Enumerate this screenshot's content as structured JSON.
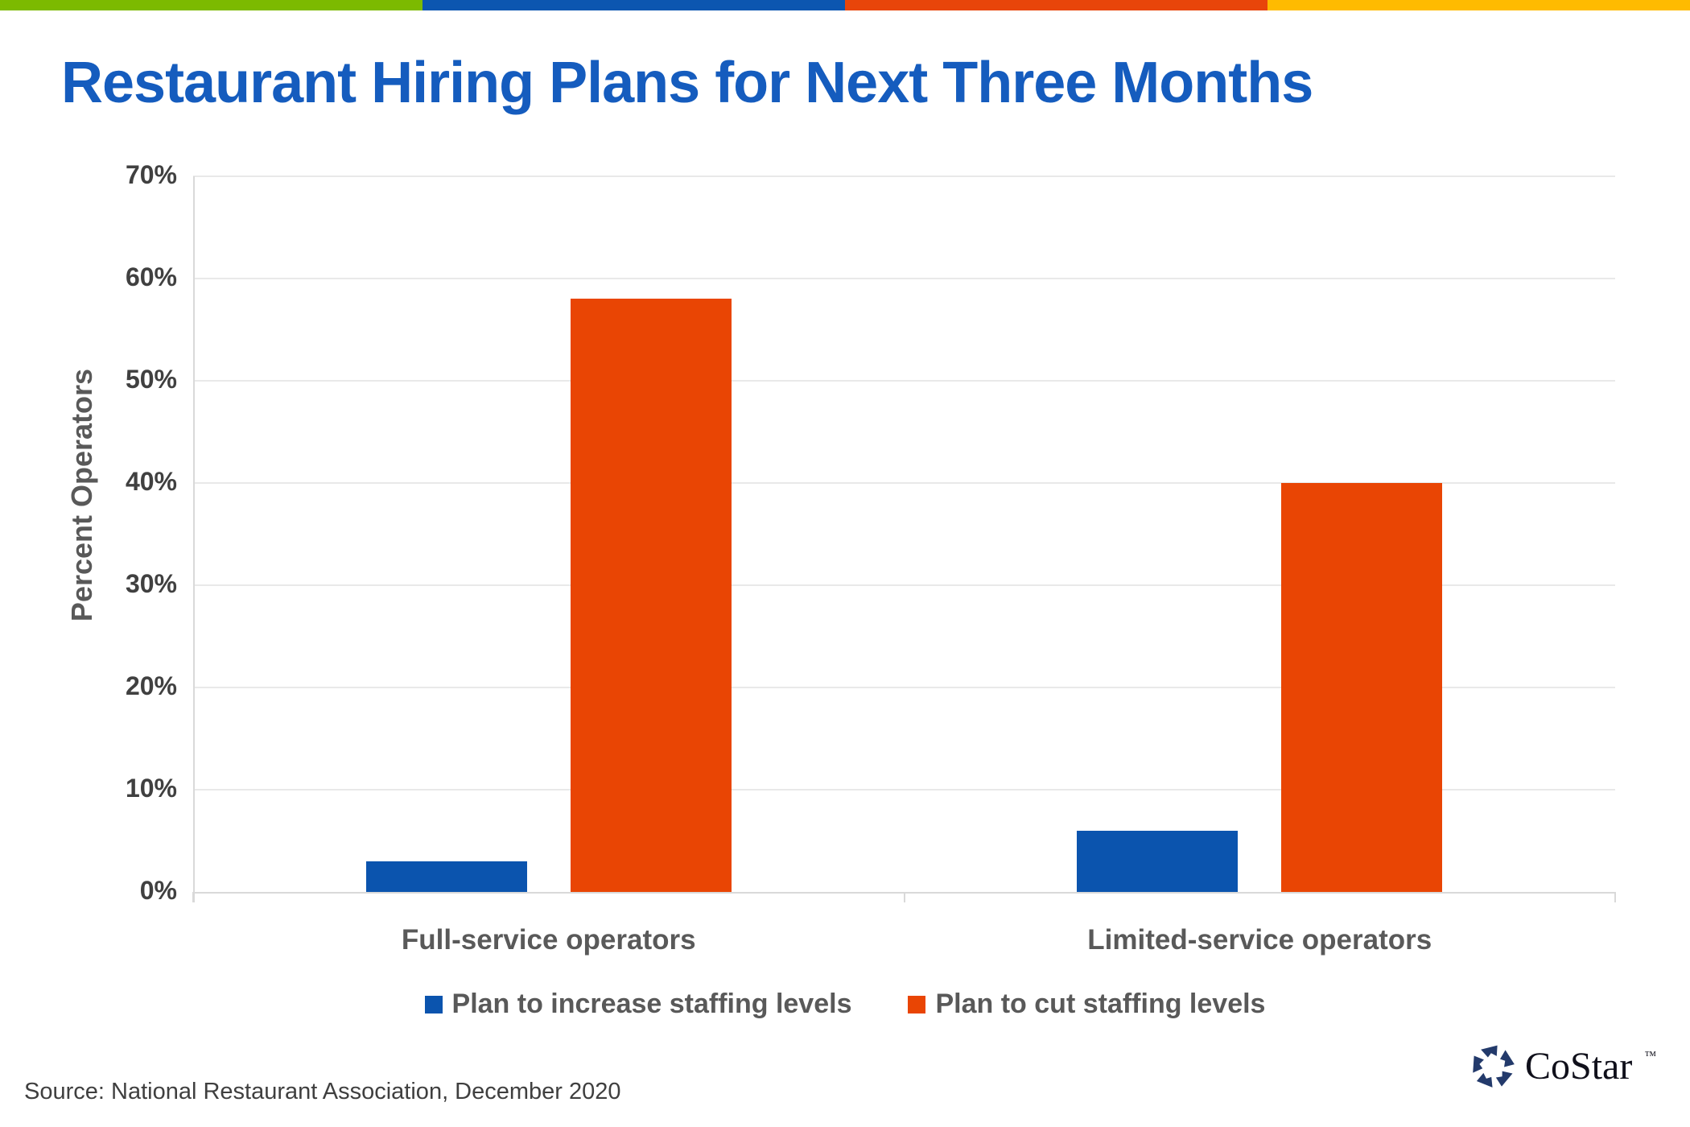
{
  "title": "Restaurant Hiring Plans for Next Three Months",
  "title_color": "#155CBE",
  "top_stripe": {
    "colors": [
      "#7CBA00",
      "#0C56B0",
      "#E8450A",
      "#FFBB00"
    ]
  },
  "chart_data": {
    "type": "bar",
    "title": "Restaurant Hiring Plans for Next Three Months",
    "categories": [
      "Full-service operators",
      "Limited-service operators"
    ],
    "series": [
      {
        "name": "Plan to increase staffing levels",
        "color": "#0B54AE",
        "values": [
          3,
          6
        ]
      },
      {
        "name": "Plan to cut staffing levels",
        "color": "#E94504",
        "values": [
          58,
          40
        ]
      }
    ],
    "xlabel": "",
    "ylabel": "Percent Operators",
    "ylim": [
      0,
      70
    ],
    "ytick_step": 10,
    "ytick_labels": [
      "0%",
      "10%",
      "20%",
      "30%",
      "40%",
      "50%",
      "60%",
      "70%"
    ],
    "grid": true,
    "legend_position": "bottom"
  },
  "source": {
    "text": "Source: National Restaurant Association, December 2020"
  },
  "logo": {
    "text": "CoStar",
    "tm": "TM",
    "color": "#233A6B"
  }
}
